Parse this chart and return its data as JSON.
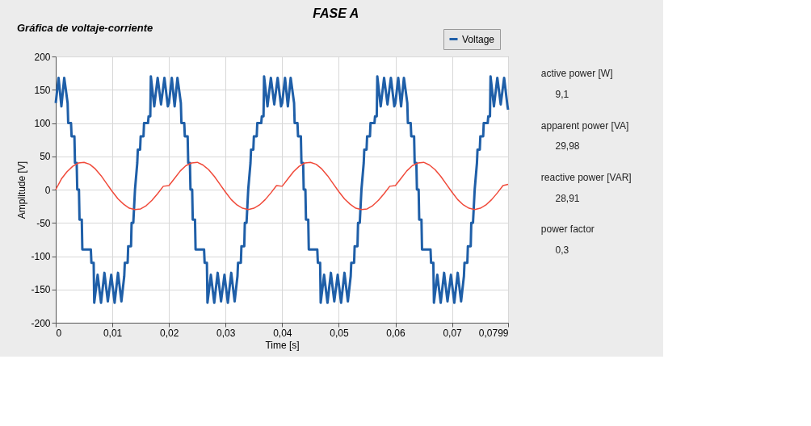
{
  "chart_data": {
    "type": "line",
    "title": "FASE A",
    "subtitle": "Gráfica de voltaje-corriente",
    "xlabel": "Time [s]",
    "ylabel": "Amplitude [V]",
    "xlim": [
      0,
      0.0799
    ],
    "xticks": [
      0,
      {
        "value": 0.01,
        "label": "0,01"
      },
      {
        "value": 0.02,
        "label": "0,02"
      },
      {
        "value": 0.03,
        "label": "0,03"
      },
      {
        "value": 0.04,
        "label": "0,04"
      },
      {
        "value": 0.05,
        "label": "0,05"
      },
      {
        "value": 0.06,
        "label": "0,06"
      },
      {
        "value": 0.07,
        "label": "0,07"
      },
      {
        "value": 0.0799,
        "label": "0,0799"
      }
    ],
    "ylim": [
      -200,
      200
    ],
    "yticks": [
      -200,
      -150,
      -100,
      -50,
      0,
      50,
      100,
      150,
      200
    ],
    "grid": true,
    "legend": "top right",
    "series": [
      {
        "name": "Voltage",
        "color": "#1f5fa8",
        "x": [
          0,
          0.0005,
          0.001,
          0.0015,
          0.0021,
          0.0022,
          0.0027,
          0.0028,
          0.0033,
          0.0034,
          0.0037,
          0.0038,
          0.0041,
          0.0042,
          0.0046,
          0.0047,
          0.0062,
          0.0063,
          0.0067,
          0.0068,
          0.0074,
          0.008,
          0.0086,
          0.0092,
          0.0098,
          0.0104,
          0.011,
          0.0116,
          0.0121,
          0.0122,
          0.0127,
          0.0128,
          0.0133,
          0.0134,
          0.0137,
          0.014,
          0.0144,
          0.0145,
          0.0149,
          0.015,
          0.0155,
          0.0156,
          0.0163,
          0.0164,
          0.0167,
          0.0168,
          0.0174,
          0.018,
          0.0186,
          0.0192,
          0.0198,
          0.02,
          0.0205,
          0.021,
          0.0215,
          0.0221,
          0.0222,
          0.0227,
          0.0228,
          0.0233,
          0.0234,
          0.0237,
          0.0238,
          0.0241,
          0.0242,
          0.0246,
          0.0247,
          0.0262,
          0.0263,
          0.0267,
          0.0268,
          0.0274,
          0.028,
          0.0286,
          0.0292,
          0.0298,
          0.0304,
          0.031,
          0.0316,
          0.0321,
          0.0322,
          0.0327,
          0.0328,
          0.0333,
          0.0334,
          0.0337,
          0.034,
          0.0344,
          0.0345,
          0.0349,
          0.035,
          0.0355,
          0.0356,
          0.0363,
          0.0364,
          0.0367,
          0.0368,
          0.0374,
          0.038,
          0.0386,
          0.0392,
          0.0398,
          0.04,
          0.0405,
          0.041,
          0.0415,
          0.0421,
          0.0422,
          0.0427,
          0.0428,
          0.0433,
          0.0434,
          0.0437,
          0.0438,
          0.0441,
          0.0442,
          0.0446,
          0.0447,
          0.0462,
          0.0463,
          0.0467,
          0.0468,
          0.0474,
          0.048,
          0.0486,
          0.0492,
          0.0498,
          0.0504,
          0.051,
          0.0516,
          0.0521,
          0.0522,
          0.0527,
          0.0528,
          0.0533,
          0.0534,
          0.0537,
          0.054,
          0.0544,
          0.0545,
          0.0549,
          0.055,
          0.0555,
          0.0556,
          0.0563,
          0.0564,
          0.0567,
          0.0568,
          0.0574,
          0.058,
          0.0586,
          0.0592,
          0.0598,
          0.06,
          0.0605,
          0.061,
          0.0615,
          0.0621,
          0.0622,
          0.0627,
          0.0628,
          0.0633,
          0.0634,
          0.0637,
          0.0638,
          0.0641,
          0.0642,
          0.0646,
          0.0647,
          0.0662,
          0.0663,
          0.0667,
          0.0668,
          0.0674,
          0.068,
          0.0686,
          0.0692,
          0.0698,
          0.0704,
          0.071,
          0.0716,
          0.0721,
          0.0722,
          0.0727,
          0.0728,
          0.0733,
          0.0734,
          0.0737,
          0.074,
          0.0744,
          0.0745,
          0.0749,
          0.075,
          0.0755,
          0.0756,
          0.0763,
          0.0764,
          0.0767,
          0.0768,
          0.0774,
          0.078,
          0.0786,
          0.0792,
          0.0798,
          0.0799
        ],
        "values": [
          130,
          168,
          125,
          168,
          130,
          100,
          100,
          80,
          80,
          40,
          40,
          0,
          0,
          -45,
          -45,
          -90,
          -90,
          -110,
          -110,
          -170,
          -128,
          -170,
          -125,
          -168,
          -128,
          -170,
          -125,
          -168,
          -130,
          -110,
          -110,
          -85,
          -85,
          -50,
          -50,
          0,
          40,
          60,
          60,
          80,
          80,
          100,
          100,
          110,
          110,
          170,
          125,
          168,
          128,
          168,
          125,
          130,
          168,
          125,
          168,
          130,
          100,
          100,
          80,
          80,
          40,
          40,
          0,
          0,
          -45,
          -45,
          -90,
          -90,
          -110,
          -110,
          -170,
          -128,
          -170,
          -125,
          -168,
          -128,
          -170,
          -125,
          -168,
          -130,
          -110,
          -110,
          -85,
          -85,
          -50,
          -50,
          0,
          40,
          60,
          60,
          80,
          80,
          100,
          100,
          110,
          110,
          170,
          125,
          168,
          128,
          168,
          125,
          130,
          168,
          125,
          168,
          130,
          100,
          100,
          80,
          80,
          40,
          40,
          0,
          0,
          -45,
          -45,
          -90,
          -90,
          -110,
          -110,
          -170,
          -128,
          -170,
          -125,
          -168,
          -128,
          -170,
          -125,
          -168,
          -130,
          -110,
          -110,
          -85,
          -85,
          -50,
          -50,
          0,
          40,
          60,
          60,
          80,
          80,
          100,
          100,
          110,
          110,
          170,
          125,
          168,
          128,
          168,
          125,
          130,
          168,
          125,
          168,
          130,
          100,
          100,
          80,
          80,
          40,
          40,
          0,
          0,
          -45,
          -45,
          -90,
          -90,
          -110,
          -110,
          -170,
          -128,
          -170,
          -125,
          -168,
          -128,
          -170,
          -125,
          -168,
          -130,
          -110,
          -110,
          -85,
          -85,
          -50,
          -50,
          0,
          40,
          60,
          60,
          80,
          80,
          100,
          100,
          110,
          110,
          170,
          125,
          168,
          128,
          168,
          125,
          120
        ]
      },
      {
        "color": "#f04a3a",
        "x": [
          0,
          0.001,
          0.002,
          0.003,
          0.004,
          0.005,
          0.006,
          0.007,
          0.008,
          0.009,
          0.01,
          0.011,
          0.012,
          0.013,
          0.014,
          0.015,
          0.016,
          0.017,
          0.018,
          0.019,
          0.02,
          0.021,
          0.022,
          0.023,
          0.024,
          0.025,
          0.026,
          0.027,
          0.028,
          0.029,
          0.03,
          0.031,
          0.032,
          0.033,
          0.034,
          0.035,
          0.036,
          0.037,
          0.038,
          0.039,
          0.04,
          0.041,
          0.042,
          0.043,
          0.044,
          0.045,
          0.046,
          0.047,
          0.048,
          0.049,
          0.05,
          0.051,
          0.052,
          0.053,
          0.054,
          0.055,
          0.056,
          0.057,
          0.058,
          0.059,
          0.06,
          0.061,
          0.062,
          0.063,
          0.064,
          0.065,
          0.066,
          0.067,
          0.068,
          0.069,
          0.07,
          0.071,
          0.072,
          0.073,
          0.074,
          0.075,
          0.076,
          0.077,
          0.078,
          0.079,
          0.0799
        ],
        "values": [
          0,
          16,
          27,
          35,
          40,
          41,
          38,
          31,
          21,
          9,
          -3,
          -14,
          -22,
          -28,
          -30,
          -29,
          -24,
          -16,
          -6,
          5,
          6,
          17,
          28,
          36,
          40,
          41,
          37,
          30,
          20,
          8,
          -4,
          -15,
          -23,
          -28,
          -30,
          -28,
          -23,
          -15,
          -5,
          6,
          5,
          16,
          27,
          35,
          40,
          41,
          38,
          31,
          21,
          9,
          -3,
          -14,
          -22,
          -28,
          -30,
          -29,
          -24,
          -16,
          -6,
          5,
          6,
          17,
          28,
          36,
          40,
          41,
          37,
          30,
          20,
          8,
          -4,
          -15,
          -23,
          -28,
          -30,
          -28,
          -23,
          -15,
          -5,
          6,
          8
        ]
      }
    ],
    "annotations": [
      "active power [W]",
      "9,1",
      "apparent power [VA]",
      "29,98",
      "reactive power [VAR]",
      "28,91",
      "power factor",
      "0,3"
    ]
  }
}
